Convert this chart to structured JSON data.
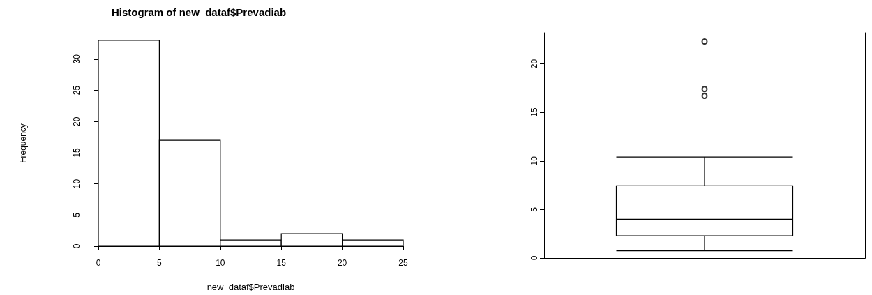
{
  "chart_data": [
    {
      "type": "histogram",
      "title": "Histogram of new_dataf$Prevadiab",
      "xlabel": "new_dataf$Prevadiab",
      "ylabel": "Frequency",
      "bins": [
        0,
        5,
        10,
        15,
        20,
        25
      ],
      "values": [
        33,
        17,
        1,
        2,
        1
      ],
      "xlim": [
        0,
        25
      ],
      "xticks": [
        0,
        5,
        10,
        15,
        20,
        25
      ],
      "ylim": [
        0,
        33
      ],
      "yticks": [
        0,
        5,
        10,
        15,
        20,
        25,
        30
      ]
    },
    {
      "type": "box",
      "categories": [
        null
      ],
      "boxes": [
        {
          "low": 0.75,
          "q1": 2.3,
          "median": 4.0,
          "q3": 7.45,
          "high": 10.4,
          "outliers": [
            16.7,
            17.4,
            22.3
          ]
        }
      ],
      "ylim": [
        0,
        23.2
      ],
      "yticks": [
        0,
        5,
        10,
        15,
        20
      ],
      "tick_labels": "y"
    }
  ]
}
